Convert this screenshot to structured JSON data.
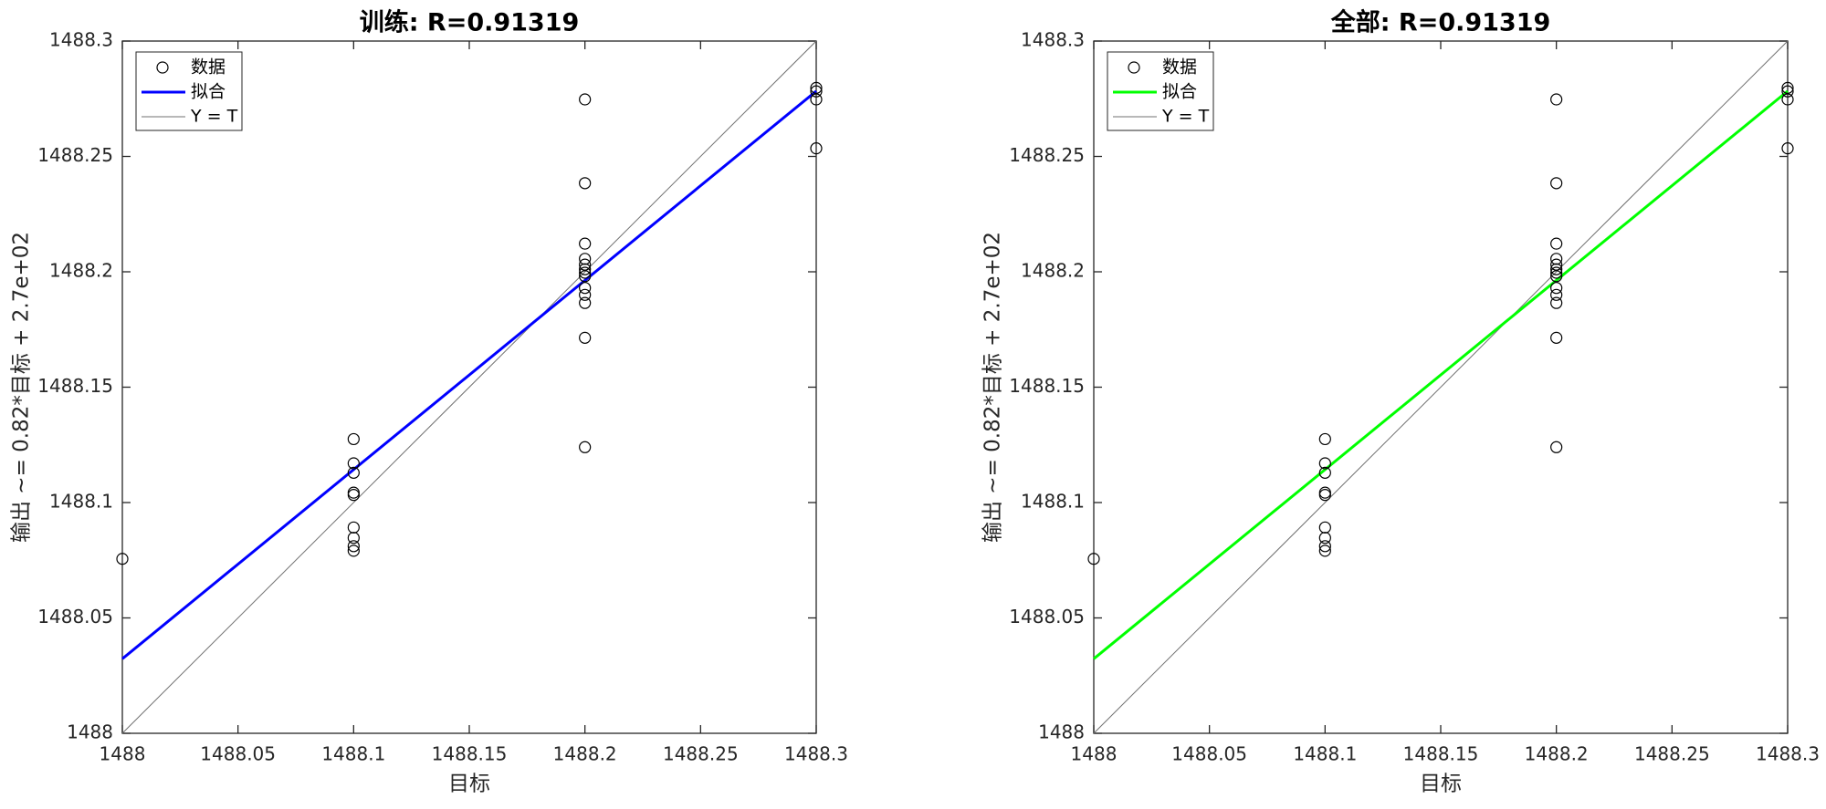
{
  "chart_data": [
    {
      "type": "scatter",
      "title": "训练: R=0.91319",
      "xlabel": "目标",
      "ylabel": "输出 ~= 0.82*目标 + 2.7e+02",
      "xlim": [
        1488,
        1488.3
      ],
      "ylim": [
        1488,
        1488.3
      ],
      "xticks": [
        1488,
        1488.05,
        1488.1,
        1488.15,
        1488.2,
        1488.25,
        1488.3
      ],
      "yticks": [
        1488,
        1488.05,
        1488.1,
        1488.15,
        1488.2,
        1488.25,
        1488.3
      ],
      "legend": "upper left",
      "series": [
        {
          "name": "数据",
          "color": "#000000",
          "x": [
            1488,
            1488.1,
            1488.1,
            1488.1,
            1488.1,
            1488.1,
            1488.1,
            1488.1,
            1488.1,
            1488.1,
            1488.2,
            1488.2,
            1488.2,
            1488.2,
            1488.2,
            1488.2,
            1488.2,
            1488.2,
            1488.2,
            1488.2,
            1488.2,
            1488.2,
            1488.2,
            1488.3,
            1488.3,
            1488.3,
            1488.3
          ],
          "values": [
            1488.0756,
            1488.1275,
            1488.117,
            1488.1129,
            1488.1043,
            1488.1033,
            1488.0892,
            1488.0847,
            1488.0811,
            1488.0791,
            1488.2747,
            1488.2384,
            1488.2122,
            1488.2056,
            1488.2031,
            1488.2011,
            1488.1996,
            1488.1981,
            1488.193,
            1488.19,
            1488.1865,
            1488.1714,
            1488.124,
            1488.2797,
            1488.2782,
            1488.2747,
            1488.2535
          ]
        },
        {
          "name": "拟合",
          "color": "#0000ff",
          "x": [
            1488,
            1488.3
          ],
          "values": [
            1488.0323,
            1488.2783
          ]
        },
        {
          "name": "Y = T",
          "color": "#707070",
          "x": [
            1488,
            1488.3
          ],
          "values": [
            1488,
            1488.3
          ]
        }
      ]
    },
    {
      "type": "scatter",
      "title": "全部: R=0.91319",
      "xlabel": "目标",
      "ylabel": "输出 ~= 0.82*目标 + 2.7e+02",
      "xlim": [
        1488,
        1488.3
      ],
      "ylim": [
        1488,
        1488.3
      ],
      "xticks": [
        1488,
        1488.05,
        1488.1,
        1488.15,
        1488.2,
        1488.25,
        1488.3
      ],
      "yticks": [
        1488,
        1488.05,
        1488.1,
        1488.15,
        1488.2,
        1488.25,
        1488.3
      ],
      "legend": "upper left",
      "series": [
        {
          "name": "数据",
          "color": "#000000",
          "x": [
            1488,
            1488.1,
            1488.1,
            1488.1,
            1488.1,
            1488.1,
            1488.1,
            1488.1,
            1488.1,
            1488.1,
            1488.2,
            1488.2,
            1488.2,
            1488.2,
            1488.2,
            1488.2,
            1488.2,
            1488.2,
            1488.2,
            1488.2,
            1488.2,
            1488.2,
            1488.2,
            1488.3,
            1488.3,
            1488.3,
            1488.3
          ],
          "values": [
            1488.0756,
            1488.1275,
            1488.117,
            1488.1129,
            1488.1043,
            1488.1033,
            1488.0892,
            1488.0847,
            1488.0811,
            1488.0791,
            1488.2747,
            1488.2384,
            1488.2122,
            1488.2056,
            1488.2031,
            1488.2011,
            1488.1996,
            1488.1981,
            1488.193,
            1488.19,
            1488.1865,
            1488.1714,
            1488.124,
            1488.2797,
            1488.2782,
            1488.2747,
            1488.2535
          ]
        },
        {
          "name": "拟合",
          "color": "#00ff00",
          "x": [
            1488,
            1488.3
          ],
          "values": [
            1488.0323,
            1488.2783
          ]
        },
        {
          "name": "Y = T",
          "color": "#707070",
          "x": [
            1488,
            1488.3
          ],
          "values": [
            1488,
            1488.3
          ]
        }
      ]
    }
  ]
}
